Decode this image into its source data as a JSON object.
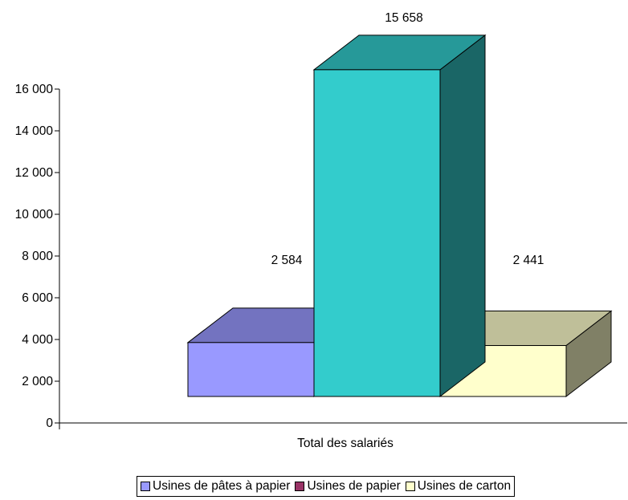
{
  "chart_data": {
    "type": "bar",
    "categories": [
      "Total des salariés"
    ],
    "series": [
      {
        "name": "Usines de pâtes à papier",
        "values": [
          2584
        ],
        "label": "2 584",
        "color": "#9999ff",
        "top_color": "#7373c0",
        "side_color": "#4d4d80"
      },
      {
        "name": "Usines de papier",
        "values": [
          15658
        ],
        "label": "15 658",
        "color": "#33cccc",
        "top_color": "#269999",
        "side_color": "#1a6666",
        "legend_color": "#993366"
      },
      {
        "name": "Usines de carton",
        "values": [
          2441
        ],
        "label": "2 441",
        "color": "#ffffcc",
        "top_color": "#bfbf99",
        "side_color": "#808066"
      }
    ],
    "xlabel": "",
    "ylabel": "",
    "ylim": [
      0,
      16000
    ],
    "yticks": [
      0,
      2000,
      4000,
      6000,
      8000,
      10000,
      12000,
      14000,
      16000
    ],
    "ytick_labels": [
      "0",
      "2 000",
      "4 000",
      "6 000",
      "8 000",
      "10 000",
      "12 000",
      "14 000",
      "16 000"
    ],
    "x_category_label": "Total des salariés",
    "grid": false,
    "legend_position": "bottom"
  }
}
